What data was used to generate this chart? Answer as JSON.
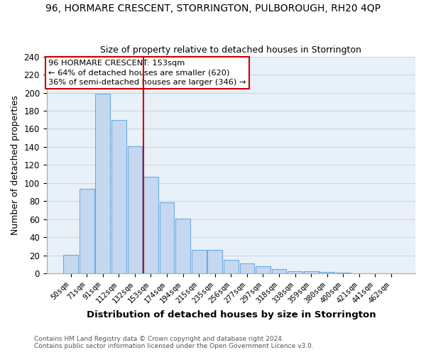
{
  "title": "96, HORMARE CRESCENT, STORRINGTON, PULBOROUGH, RH20 4QP",
  "subtitle": "Size of property relative to detached houses in Storrington",
  "xlabel": "Distribution of detached houses by size in Storrington",
  "ylabel": "Number of detached properties",
  "bar_labels": [
    "50sqm",
    "71sqm",
    "91sqm",
    "112sqm",
    "132sqm",
    "153sqm",
    "174sqm",
    "194sqm",
    "215sqm",
    "235sqm",
    "256sqm",
    "277sqm",
    "297sqm",
    "318sqm",
    "338sqm",
    "359sqm",
    "380sqm",
    "400sqm",
    "421sqm",
    "441sqm",
    "462sqm"
  ],
  "bar_heights": [
    21,
    94,
    199,
    170,
    141,
    107,
    79,
    61,
    26,
    26,
    15,
    11,
    8,
    5,
    3,
    3,
    2,
    1,
    0,
    0,
    0
  ],
  "bar_color": "#c5d8ef",
  "bar_edge_color": "#6aace0",
  "reference_line_color": "#cc0000",
  "reference_bar_index": 5,
  "ylim": [
    0,
    240
  ],
  "yticks": [
    0,
    20,
    40,
    60,
    80,
    100,
    120,
    140,
    160,
    180,
    200,
    220,
    240
  ],
  "annotation_title": "96 HORMARE CRESCENT: 153sqm",
  "annotation_line1": "← 64% of detached houses are smaller (620)",
  "annotation_line2": "36% of semi-detached houses are larger (346) →",
  "annotation_box_edge_color": "#cc0000",
  "footer1": "Contains HM Land Registry data © Crown copyright and database right 2024.",
  "footer2": "Contains public sector information licensed under the Open Government Licence v3.0.",
  "background_color": "#ffffff",
  "axes_bg_color": "#e8f0f8",
  "grid_color": "#c8d8e8"
}
